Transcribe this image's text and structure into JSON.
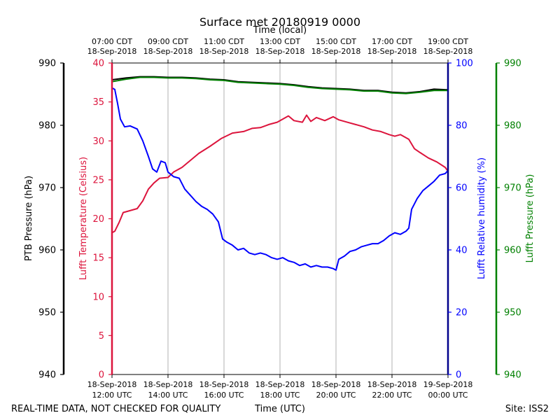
{
  "chart_data": {
    "type": "line",
    "title": "Surface met 20180919 0000",
    "top_axis_label": "Time (local)",
    "top_ticks": [
      {
        "hour": 0,
        "line1": "07:00 CDT",
        "line2": "18-Sep-2018"
      },
      {
        "hour": 2,
        "line1": "09:00 CDT",
        "line2": "18-Sep-2018"
      },
      {
        "hour": 4,
        "line1": "11:00 CDT",
        "line2": "18-Sep-2018"
      },
      {
        "hour": 6,
        "line1": "13:00 CDT",
        "line2": "18-Sep-2018"
      },
      {
        "hour": 8,
        "line1": "15:00 CDT",
        "line2": "18-Sep-2018"
      },
      {
        "hour": 10,
        "line1": "17:00 CDT",
        "line2": "18-Sep-2018"
      },
      {
        "hour": 12,
        "line1": "19:00 CDT",
        "line2": "18-Sep-2018"
      }
    ],
    "bottom_ticks": [
      {
        "hour": 0,
        "line1": "18-Sep-2018",
        "line2": "12:00 UTC"
      },
      {
        "hour": 2,
        "line1": "18-Sep-2018",
        "line2": "14:00 UTC"
      },
      {
        "hour": 4,
        "line1": "18-Sep-2018",
        "line2": "16:00 UTC"
      },
      {
        "hour": 6,
        "line1": "18-Sep-2018",
        "line2": "18:00 UTC"
      },
      {
        "hour": 8,
        "line1": "18-Sep-2018",
        "line2": "20:00 UTC"
      },
      {
        "hour": 10,
        "line1": "18-Sep-2018",
        "line2": "22:00 UTC"
      },
      {
        "hour": 12,
        "line1": "19-Sep-2018",
        "line2": "00:00 UTC"
      }
    ],
    "xlabel": "Time (UTC)",
    "x_range_hours": [
      0,
      12
    ],
    "axes": {
      "ptb_pressure": {
        "label": "PTB Pressure (hPa)",
        "range": [
          940,
          990
        ],
        "ticks": [
          940,
          950,
          960,
          970,
          980,
          990
        ],
        "color": "#000000"
      },
      "temperature": {
        "label": "Lufft Temperature (Celsius)",
        "range": [
          0,
          40
        ],
        "ticks": [
          0,
          5,
          10,
          15,
          20,
          25,
          30,
          35,
          40
        ],
        "color": "#dc143c"
      },
      "humidity": {
        "label": "Lufft Relative humidity (%)",
        "range": [
          0,
          100
        ],
        "ticks": [
          0,
          20,
          40,
          60,
          80,
          100
        ],
        "color": "#0000ff"
      },
      "lufft_pressure": {
        "label": "Lufft Pressure (hPa)",
        "range": [
          940,
          990
        ],
        "ticks": [
          940,
          950,
          960,
          970,
          980,
          990
        ],
        "color": "#008000"
      }
    },
    "series": [
      {
        "name": "PTB Pressure",
        "axis": "ptb_pressure",
        "color": "#000000",
        "points": [
          [
            0,
            987.3
          ],
          [
            0.5,
            987.6
          ],
          [
            1,
            987.8
          ],
          [
            1.5,
            987.8
          ],
          [
            2,
            987.7
          ],
          [
            2.5,
            987.7
          ],
          [
            3,
            987.6
          ],
          [
            3.5,
            987.4
          ],
          [
            4,
            987.3
          ],
          [
            4.5,
            987.0
          ],
          [
            5,
            986.9
          ],
          [
            5.5,
            986.8
          ],
          [
            6,
            986.7
          ],
          [
            6.5,
            986.5
          ],
          [
            7,
            986.2
          ],
          [
            7.5,
            986.0
          ],
          [
            8,
            985.9
          ],
          [
            8.5,
            985.8
          ],
          [
            9,
            985.6
          ],
          [
            9.5,
            985.6
          ],
          [
            10,
            985.3
          ],
          [
            10.5,
            985.2
          ],
          [
            11,
            985.4
          ],
          [
            11.5,
            985.8
          ],
          [
            12,
            985.7
          ]
        ]
      },
      {
        "name": "Lufft Pressure",
        "axis": "lufft_pressure",
        "color": "#008000",
        "points": [
          [
            0,
            987.0
          ],
          [
            0.5,
            987.4
          ],
          [
            1,
            987.7
          ],
          [
            1.5,
            987.7
          ],
          [
            2,
            987.6
          ],
          [
            2.5,
            987.6
          ],
          [
            3,
            987.5
          ],
          [
            3.5,
            987.3
          ],
          [
            4,
            987.2
          ],
          [
            4.5,
            986.9
          ],
          [
            5,
            986.8
          ],
          [
            5.5,
            986.7
          ],
          [
            6,
            986.6
          ],
          [
            6.5,
            986.4
          ],
          [
            7,
            986.1
          ],
          [
            7.5,
            985.9
          ],
          [
            8,
            985.8
          ],
          [
            8.5,
            985.7
          ],
          [
            9,
            985.5
          ],
          [
            9.5,
            985.5
          ],
          [
            10,
            985.2
          ],
          [
            10.5,
            985.1
          ],
          [
            11,
            985.3
          ],
          [
            11.5,
            985.6
          ],
          [
            12,
            985.6
          ]
        ]
      },
      {
        "name": "Lufft Temperature",
        "axis": "temperature",
        "color": "#dc143c",
        "points": [
          [
            0,
            18.2
          ],
          [
            0.1,
            18.4
          ],
          [
            0.25,
            19.5
          ],
          [
            0.4,
            20.8
          ],
          [
            0.6,
            21.0
          ],
          [
            0.9,
            21.3
          ],
          [
            1.1,
            22.3
          ],
          [
            1.3,
            23.8
          ],
          [
            1.5,
            24.6
          ],
          [
            1.7,
            25.2
          ],
          [
            2.0,
            25.3
          ],
          [
            2.2,
            26.0
          ],
          [
            2.5,
            26.6
          ],
          [
            2.8,
            27.5
          ],
          [
            3.1,
            28.4
          ],
          [
            3.5,
            29.3
          ],
          [
            3.9,
            30.3
          ],
          [
            4.3,
            31.0
          ],
          [
            4.7,
            31.2
          ],
          [
            5.0,
            31.6
          ],
          [
            5.3,
            31.7
          ],
          [
            5.6,
            32.1
          ],
          [
            5.9,
            32.4
          ],
          [
            6.1,
            32.8
          ],
          [
            6.3,
            33.2
          ],
          [
            6.5,
            32.6
          ],
          [
            6.8,
            32.4
          ],
          [
            6.95,
            33.3
          ],
          [
            7.1,
            32.5
          ],
          [
            7.3,
            33.0
          ],
          [
            7.6,
            32.6
          ],
          [
            7.9,
            33.1
          ],
          [
            8.1,
            32.7
          ],
          [
            8.4,
            32.4
          ],
          [
            8.7,
            32.1
          ],
          [
            9.0,
            31.8
          ],
          [
            9.3,
            31.4
          ],
          [
            9.6,
            31.2
          ],
          [
            9.9,
            30.8
          ],
          [
            10.1,
            30.6
          ],
          [
            10.3,
            30.8
          ],
          [
            10.6,
            30.2
          ],
          [
            10.8,
            29.0
          ],
          [
            11.0,
            28.5
          ],
          [
            11.3,
            27.8
          ],
          [
            11.6,
            27.3
          ],
          [
            11.9,
            26.6
          ],
          [
            12,
            26.1
          ]
        ]
      },
      {
        "name": "Lufft Relative humidity",
        "axis": "humidity",
        "color": "#0000ff",
        "points": [
          [
            0,
            92.0
          ],
          [
            0.1,
            91.5
          ],
          [
            0.2,
            87.0
          ],
          [
            0.3,
            82.0
          ],
          [
            0.45,
            79.5
          ],
          [
            0.65,
            79.8
          ],
          [
            0.9,
            78.8
          ],
          [
            1.1,
            75.0
          ],
          [
            1.3,
            70.0
          ],
          [
            1.45,
            66.0
          ],
          [
            1.6,
            65.0
          ],
          [
            1.75,
            68.5
          ],
          [
            1.9,
            68.0
          ],
          [
            2.0,
            65.0
          ],
          [
            2.2,
            63.5
          ],
          [
            2.4,
            63.0
          ],
          [
            2.6,
            59.5
          ],
          [
            2.8,
            57.5
          ],
          [
            3.0,
            55.5
          ],
          [
            3.2,
            54.0
          ],
          [
            3.4,
            53.0
          ],
          [
            3.6,
            51.5
          ],
          [
            3.8,
            49.0
          ],
          [
            3.95,
            43.5
          ],
          [
            4.1,
            42.5
          ],
          [
            4.3,
            41.5
          ],
          [
            4.5,
            40.0
          ],
          [
            4.7,
            40.5
          ],
          [
            4.9,
            39.0
          ],
          [
            5.1,
            38.5
          ],
          [
            5.3,
            39.0
          ],
          [
            5.5,
            38.5
          ],
          [
            5.7,
            37.5
          ],
          [
            5.9,
            37.0
          ],
          [
            6.1,
            37.5
          ],
          [
            6.3,
            36.5
          ],
          [
            6.5,
            36.0
          ],
          [
            6.7,
            35.0
          ],
          [
            6.9,
            35.5
          ],
          [
            7.1,
            34.5
          ],
          [
            7.3,
            35.0
          ],
          [
            7.5,
            34.5
          ],
          [
            7.7,
            34.5
          ],
          [
            7.9,
            34.0
          ],
          [
            8.0,
            33.5
          ],
          [
            8.1,
            37.0
          ],
          [
            8.3,
            38.0
          ],
          [
            8.5,
            39.5
          ],
          [
            8.7,
            40.0
          ],
          [
            8.9,
            41.0
          ],
          [
            9.1,
            41.5
          ],
          [
            9.3,
            42.0
          ],
          [
            9.5,
            42.0
          ],
          [
            9.7,
            43.0
          ],
          [
            9.9,
            44.5
          ],
          [
            10.1,
            45.5
          ],
          [
            10.3,
            45.0
          ],
          [
            10.5,
            46.0
          ],
          [
            10.6,
            47.0
          ],
          [
            10.7,
            53.0
          ],
          [
            10.9,
            56.5
          ],
          [
            11.1,
            59.0
          ],
          [
            11.3,
            60.5
          ],
          [
            11.5,
            62.0
          ],
          [
            11.7,
            64.0
          ],
          [
            11.9,
            64.5
          ],
          [
            12,
            65.5
          ]
        ]
      }
    ]
  },
  "footer": {
    "left": "REAL-TIME DATA, NOT CHECKED FOR QUALITY",
    "center": "Time (UTC)",
    "right": "Site: ISS2"
  }
}
